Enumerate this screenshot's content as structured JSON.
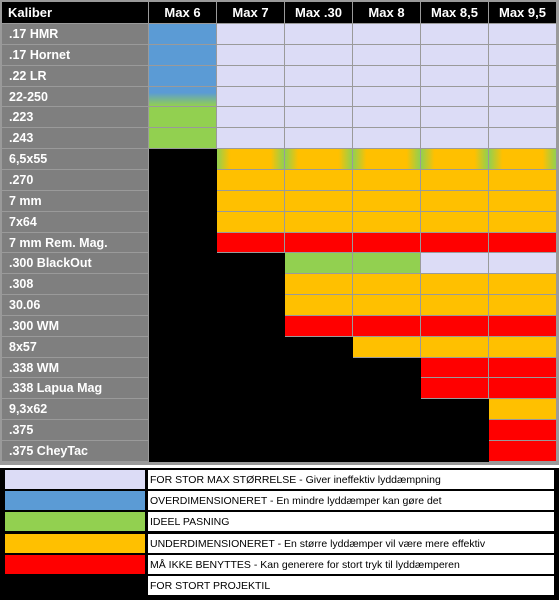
{
  "header": {
    "corner_label": "Kaliber",
    "columns": [
      "Max 6",
      "Max 7",
      "Max .30",
      "Max 8",
      "Max 8,5",
      "Max 9,5"
    ]
  },
  "calibers": [
    ".17 HMR",
    ".17 Hornet",
    ".22 LR",
    "22-250",
    ".223",
    ".243",
    "6,5x55",
    ".270",
    "7 mm",
    "7x64",
    "7 mm Rem. Mag.",
    ".300 BlackOut",
    ".308",
    "30.06",
    ".300 WM",
    "8x57",
    ".338 WM",
    ".338 Lapua Mag",
    "9,3x62",
    ".375",
    ".375 CheyTac"
  ],
  "matrix": [
    [
      "B",
      "L",
      "L",
      "L",
      "L",
      "L"
    ],
    [
      "B",
      "L",
      "L",
      "L",
      "L",
      "L"
    ],
    [
      "B",
      "L",
      "L",
      "L",
      "L",
      "L"
    ],
    [
      "BG",
      "L",
      "L",
      "L",
      "L",
      "L"
    ],
    [
      "G",
      "L",
      "L",
      "L",
      "L",
      "L"
    ],
    [
      "G",
      "L",
      "L",
      "L",
      "L",
      "L"
    ],
    [
      "K",
      "GO",
      "GO",
      "GO",
      "GO",
      "GO"
    ],
    [
      "K",
      "O",
      "O",
      "O",
      "O",
      "O"
    ],
    [
      "K",
      "O",
      "O",
      "O",
      "O",
      "O"
    ],
    [
      "K",
      "O",
      "O",
      "O",
      "O",
      "O"
    ],
    [
      "K",
      "R",
      "R",
      "R",
      "R",
      "R"
    ],
    [
      "K",
      "K",
      "G",
      "G",
      "L",
      "L"
    ],
    [
      "K",
      "K",
      "O",
      "O",
      "O",
      "O"
    ],
    [
      "K",
      "K",
      "O",
      "O",
      "O",
      "O"
    ],
    [
      "K",
      "K",
      "R",
      "R",
      "R",
      "R"
    ],
    [
      "K",
      "K",
      "K",
      "O",
      "O",
      "O"
    ],
    [
      "K",
      "K",
      "K",
      "K",
      "R",
      "R"
    ],
    [
      "K",
      "K",
      "K",
      "K",
      "R",
      "R"
    ],
    [
      "K",
      "K",
      "K",
      "K",
      "K",
      "O"
    ],
    [
      "K",
      "K",
      "K",
      "K",
      "K",
      "R"
    ],
    [
      "K",
      "K",
      "K",
      "K",
      "K",
      "R"
    ]
  ],
  "colors": {
    "too_large": "#dcdcf6",
    "oversized": "#5b9bd5",
    "ideal": "#92d050",
    "undersized": "#ffc000",
    "forbidden": "#ff0000",
    "too_large_projectile": "#000000"
  },
  "legend": [
    {
      "swatch": "L",
      "text": "FOR STOR MAX STØRRELSE - Giver ineffektiv lyddæmpning"
    },
    {
      "swatch": "B",
      "text": "OVERDIMENSIONERET - En mindre lyddæmper kan gøre det"
    },
    {
      "swatch": "G",
      "text": "IDEEL PASNING"
    },
    {
      "swatch": "O",
      "text": "UNDERDIMENSIONERET - En større lyddæmper vil være mere effektiv"
    },
    {
      "swatch": "R",
      "text": "MÅ IKKE BENYTTES - Kan generere for stort tryk til lyddæmperen"
    },
    {
      "swatch": "K",
      "text": "FOR STORT PROJEKTIL"
    }
  ]
}
